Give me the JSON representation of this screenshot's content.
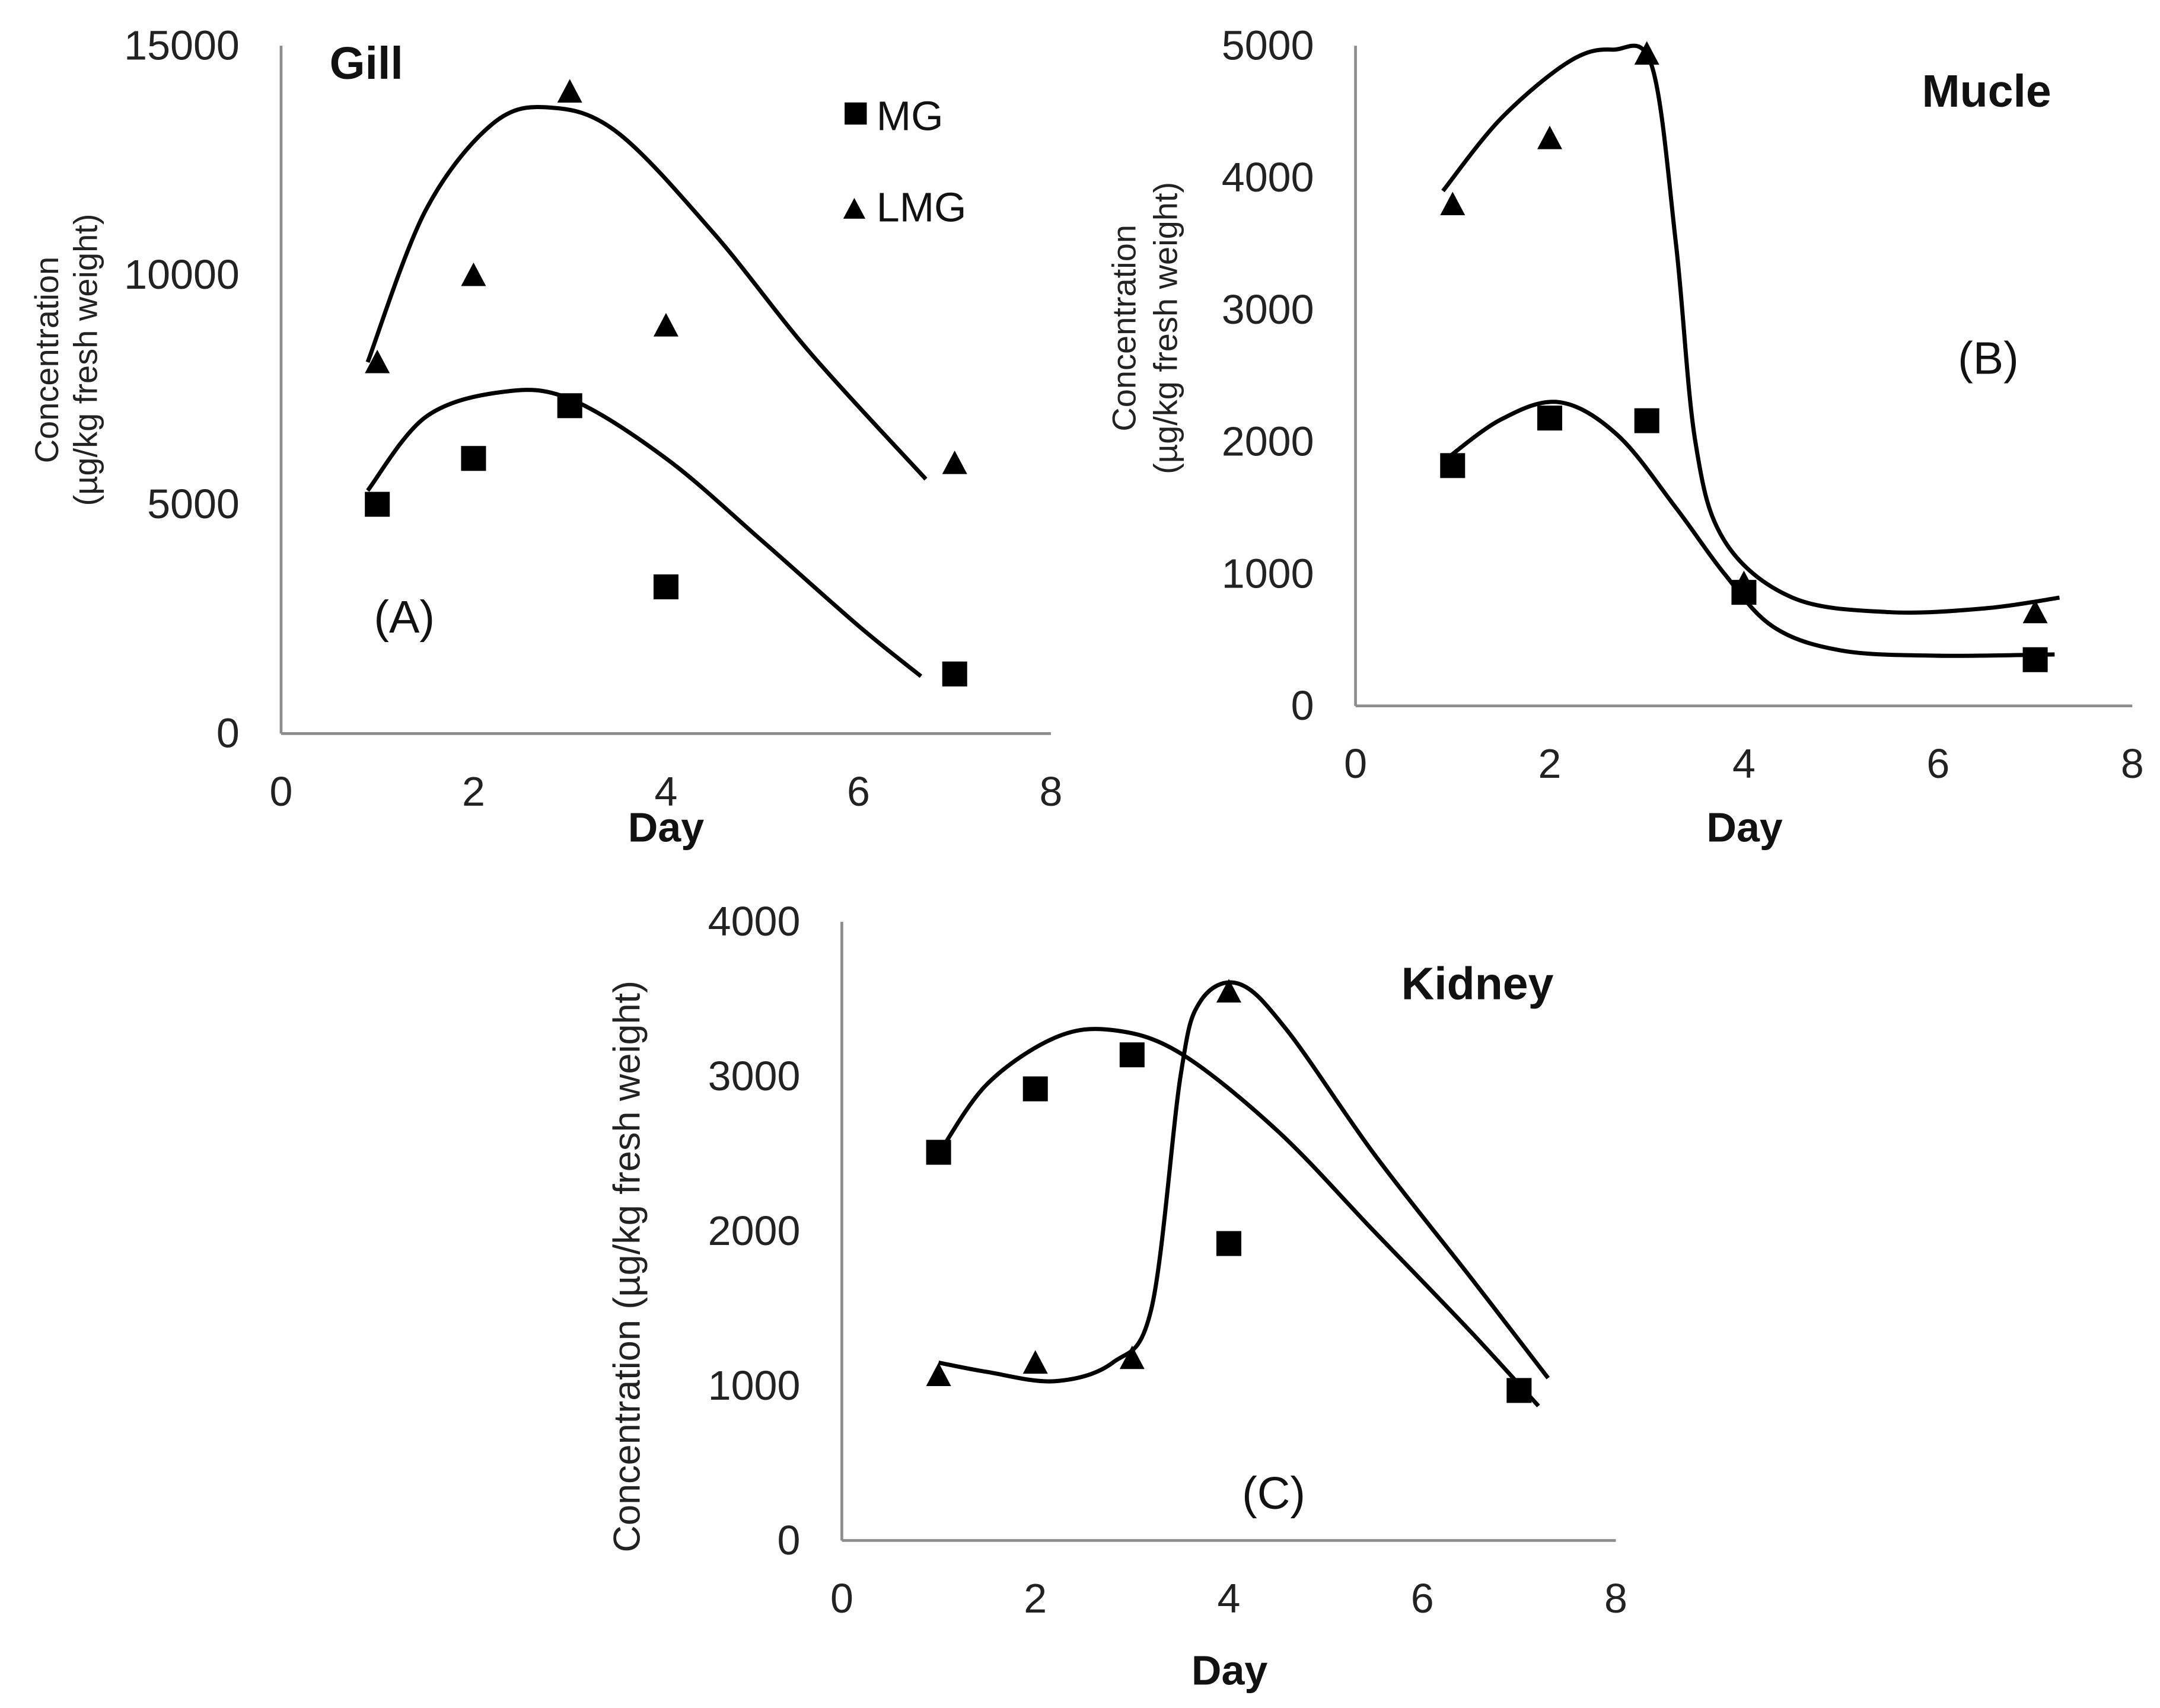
{
  "legend": {
    "mg": "MG",
    "lmg": "LMG",
    "placement": "top-right (panel A)"
  },
  "colors": {
    "ink": "#000000",
    "axis": "#8c8c8c"
  },
  "chart_data": [
    {
      "type": "scatter",
      "title": "Gill",
      "panel_label": "(A)",
      "xlabel": "Day",
      "ylabel_line1": "Concentration",
      "ylabel_line2": "(µg/kg fresh weight)",
      "xlim": [
        0,
        8
      ],
      "ylim": [
        0,
        15000
      ],
      "xticks": [
        "0",
        "2",
        "4",
        "6",
        "8"
      ],
      "yticks": [
        "0",
        "5000",
        "10000",
        "15000"
      ],
      "grid": false,
      "series": [
        {
          "name": "MG",
          "marker": "square",
          "x": [
            1,
            2,
            3,
            4,
            7
          ],
          "y": [
            5000,
            6000,
            7150,
            3200,
            1300
          ],
          "trend": [
            [
              0.9,
              5300
            ],
            [
              1.5,
              6900
            ],
            [
              2.3,
              7450
            ],
            [
              3,
              7300
            ],
            [
              4,
              6000
            ],
            [
              5,
              4200
            ],
            [
              6,
              2350
            ],
            [
              6.65,
              1250
            ]
          ]
        },
        {
          "name": "LMG",
          "marker": "triangle",
          "x": [
            1,
            2,
            3,
            4,
            7
          ],
          "y": [
            8100,
            10000,
            14000,
            8900,
            5900
          ],
          "trend": [
            [
              0.9,
              8100
            ],
            [
              1.5,
              11400
            ],
            [
              2.2,
              13300
            ],
            [
              2.8,
              13650
            ],
            [
              3.5,
              13100
            ],
            [
              4.5,
              10900
            ],
            [
              5.5,
              8300
            ],
            [
              6.7,
              5550
            ]
          ]
        }
      ]
    },
    {
      "type": "scatter",
      "title": "Mucle",
      "panel_label": "(B)",
      "xlabel": "Day",
      "ylabel_line1": "Concentration",
      "ylabel_line2": "(µg/kg fresh weight)",
      "xlim": [
        0,
        8
      ],
      "ylim": [
        0,
        5000
      ],
      "xticks": [
        "0",
        "2",
        "4",
        "6",
        "8"
      ],
      "yticks": [
        "0",
        "1000",
        "2000",
        "3000",
        "4000",
        "5000"
      ],
      "grid": false,
      "series": [
        {
          "name": "MG",
          "marker": "square",
          "x": [
            1,
            2,
            3,
            4,
            7
          ],
          "y": [
            1820,
            2180,
            2160,
            860,
            350
          ],
          "trend": [
            [
              0.9,
              1850
            ],
            [
              1.5,
              2170
            ],
            [
              2.1,
              2300
            ],
            [
              2.7,
              2050
            ],
            [
              3.3,
              1500
            ],
            [
              3.8,
              1000
            ],
            [
              4.3,
              600
            ],
            [
              5,
              420
            ],
            [
              6,
              380
            ],
            [
              7.2,
              390
            ]
          ]
        },
        {
          "name": "LMG",
          "marker": "triangle",
          "x": [
            1,
            2,
            3,
            4,
            7
          ],
          "y": [
            3800,
            4300,
            4940,
            930,
            710
          ],
          "trend": [
            [
              0.9,
              3900
            ],
            [
              1.5,
              4450
            ],
            [
              2.2,
              4880
            ],
            [
              2.65,
              4970
            ],
            [
              3.05,
              4850
            ],
            [
              3.3,
              3500
            ],
            [
              3.5,
              2000
            ],
            [
              3.8,
              1250
            ],
            [
              4.5,
              820
            ],
            [
              5.5,
              710
            ],
            [
              6.5,
              740
            ],
            [
              7.25,
              820
            ]
          ]
        }
      ]
    },
    {
      "type": "scatter",
      "title": "Kidney",
      "panel_label": "(C)",
      "xlabel": "Day",
      "ylabel_line1": "Concentration (µg/kg fresh weight)",
      "ylabel_line2": "",
      "xlim": [
        0,
        8
      ],
      "ylim": [
        0,
        4000
      ],
      "xticks": [
        "0",
        "2",
        "4",
        "6",
        "8"
      ],
      "yticks": [
        "0",
        "1000",
        "2000",
        "3000",
        "4000"
      ],
      "grid": false,
      "series": [
        {
          "name": "MG",
          "marker": "square",
          "x": [
            1,
            2,
            3,
            4,
            7
          ],
          "y": [
            2510,
            2920,
            3140,
            1920,
            970
          ],
          "trend": [
            [
              1,
              2500
            ],
            [
              1.5,
              2950
            ],
            [
              2.2,
              3250
            ],
            [
              2.8,
              3300
            ],
            [
              3.5,
              3150
            ],
            [
              4.5,
              2650
            ],
            [
              5.5,
              2000
            ],
            [
              6.5,
              1350
            ],
            [
              7.2,
              870
            ]
          ]
        },
        {
          "name": "LMG",
          "marker": "triangle",
          "x": [
            1,
            2,
            3,
            4,
            7
          ],
          "y": [
            1070,
            1150,
            1180,
            3550,
            970
          ],
          "trend": [
            [
              1,
              1150
            ],
            [
              1.5,
              1090
            ],
            [
              2.2,
              1030
            ],
            [
              2.8,
              1150
            ],
            [
              3.2,
              1500
            ],
            [
              3.5,
              3000
            ],
            [
              3.7,
              3480
            ],
            [
              4.1,
              3600
            ],
            [
              4.6,
              3300
            ],
            [
              5.5,
              2500
            ],
            [
              6.5,
              1700
            ],
            [
              7.3,
              1050
            ]
          ]
        }
      ]
    }
  ]
}
